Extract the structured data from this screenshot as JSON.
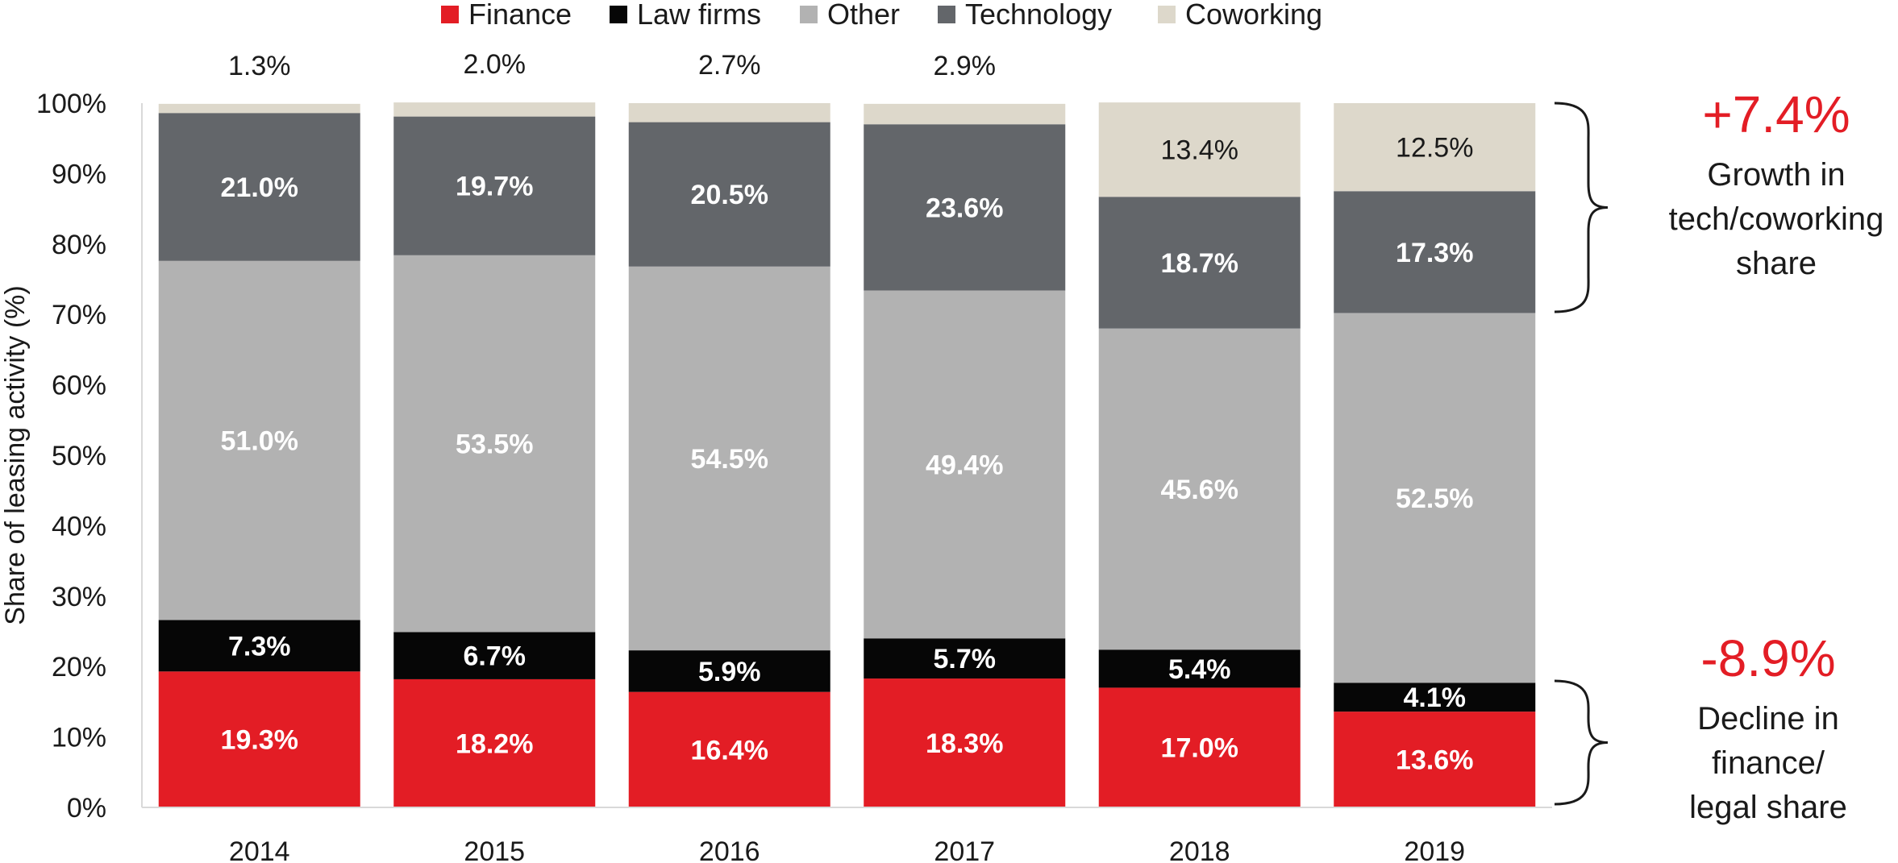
{
  "colors": {
    "finance": "#e31d25",
    "law_firms": "#060606",
    "other": "#b2b2b2",
    "technology": "#63666a",
    "coworking": "#ddd8cb",
    "accent": "#e31d25"
  },
  "legend": [
    {
      "label": "Finance",
      "color": "#e31d25"
    },
    {
      "label": "Law firms",
      "color": "#060606"
    },
    {
      "label": "Other",
      "color": "#b2b2b2"
    },
    {
      "label": "Technology",
      "color": "#63666a"
    },
    {
      "label": "Coworking",
      "color": "#ddd8cb"
    }
  ],
  "annotations": {
    "growth_value": "+7.4%",
    "growth_lines": [
      "Growth in",
      "tech/coworking",
      "share"
    ],
    "decline_value": "-8.9%",
    "decline_lines": [
      "Decline in",
      "finance/",
      "legal share"
    ]
  },
  "chart_data": {
    "type": "bar",
    "stacked": true,
    "categories": [
      "2014",
      "2015",
      "2016",
      "2017",
      "2018",
      "2019"
    ],
    "series": [
      {
        "name": "Finance",
        "color": "#e31d25",
        "values": [
          19.3,
          18.2,
          16.4,
          18.3,
          17.0,
          13.6
        ],
        "labels": [
          "19.3%",
          "18.2%",
          "16.4%",
          "18.3%",
          "17.0%",
          "13.6%"
        ]
      },
      {
        "name": "Law firms",
        "color": "#060606",
        "values": [
          7.3,
          6.7,
          5.9,
          5.7,
          5.4,
          4.1
        ],
        "labels": [
          "7.3%",
          "6.7%",
          "5.9%",
          "5.7%",
          "5.4%",
          "4.1%"
        ]
      },
      {
        "name": "Other",
        "color": "#b2b2b2",
        "values": [
          51.0,
          53.5,
          54.5,
          49.4,
          45.6,
          52.5
        ],
        "labels": [
          "51.0%",
          "53.5%",
          "54.5%",
          "49.4%",
          "45.6%",
          "52.5%"
        ]
      },
      {
        "name": "Technology",
        "color": "#63666a",
        "values": [
          21.0,
          19.7,
          20.5,
          23.6,
          18.7,
          17.3
        ],
        "labels": [
          "21.0%",
          "19.7%",
          "20.5%",
          "23.6%",
          "18.7%",
          "17.3%"
        ]
      },
      {
        "name": "Coworking",
        "color": "#ddd8cb",
        "values": [
          1.3,
          2.0,
          2.7,
          2.9,
          13.4,
          12.5
        ],
        "labels": [
          "1.3%",
          "2.0%",
          "2.7%",
          "2.9%",
          "13.4%",
          "12.5%"
        ]
      }
    ],
    "ylabel": "Share of leasing activity (%)",
    "xlabel": "",
    "ylim": [
      0,
      100
    ],
    "yticks": [
      "0%",
      "10%",
      "20%",
      "30%",
      "40%",
      "50%",
      "60%",
      "70%",
      "80%",
      "90%",
      "100%"
    ],
    "legend_position": "top",
    "grid": false
  }
}
